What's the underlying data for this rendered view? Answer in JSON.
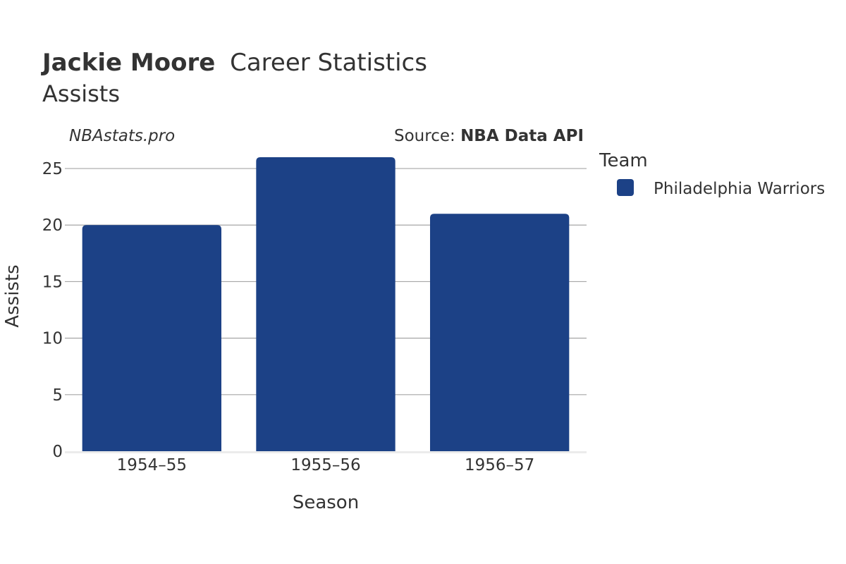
{
  "header": {
    "title_bold": "Jackie Moore",
    "title_rest": "Career Statistics",
    "subtitle": "Assists"
  },
  "credits": {
    "site": "NBAstats.pro",
    "source_prefix": "Source: ",
    "source_name": "NBA Data API"
  },
  "legend": {
    "title": "Team",
    "entries": [
      {
        "label": "Philadelphia Warriors",
        "color": "#1c4186"
      }
    ]
  },
  "chart_data": {
    "type": "bar",
    "categories": [
      "1954–55",
      "1955–56",
      "1956–57"
    ],
    "series": [
      {
        "name": "Philadelphia Warriors",
        "values": [
          20,
          26,
          21
        ],
        "color": "#1c4186"
      }
    ],
    "xlabel": "Season",
    "ylabel": "Assists",
    "ylim": [
      0,
      26.5
    ],
    "yticks": [
      0,
      5,
      10,
      15,
      20,
      25
    ],
    "grid": true,
    "legend_position": "right"
  }
}
